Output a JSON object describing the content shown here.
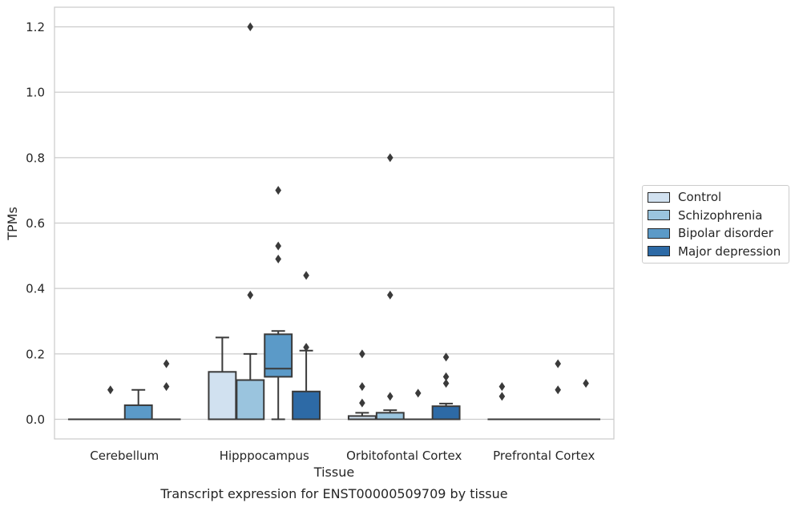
{
  "chart_data": {
    "type": "box",
    "title": "Transcript expression for ENST00000509709 by tissue",
    "xlabel": "Tissue",
    "ylabel": "TPMs",
    "ylim": [
      -0.06,
      1.26
    ],
    "yticks": [
      "0.0",
      "0.2",
      "0.4",
      "0.6",
      "0.8",
      "1.0",
      "1.2"
    ],
    "grid": "horizontal",
    "legend_position": "right",
    "categories": [
      "Cerebellum",
      "Hipppocampus",
      "Orbitofontal Cortex",
      "Prefrontal Cortex"
    ],
    "series": [
      {
        "name": "Control",
        "color": "#d1e1f0",
        "boxes": [
          {
            "q1": 0.0,
            "median": 0.0,
            "q3": 0.0,
            "whisker_low": 0.0,
            "whisker_high": 0.0,
            "outliers": []
          },
          {
            "q1": 0.0,
            "median": 0.0,
            "q3": 0.145,
            "whisker_low": 0.0,
            "whisker_high": 0.25,
            "outliers": []
          },
          {
            "q1": 0.0,
            "median": 0.0,
            "q3": 0.01,
            "whisker_low": 0.0,
            "whisker_high": 0.02,
            "outliers": [
              0.2,
              0.1,
              0.05
            ]
          },
          {
            "q1": 0.0,
            "median": 0.0,
            "q3": 0.0,
            "whisker_low": 0.0,
            "whisker_high": 0.0,
            "outliers": [
              0.1,
              0.07
            ]
          }
        ]
      },
      {
        "name": "Schizophrenia",
        "color": "#9ac4de",
        "boxes": [
          {
            "q1": 0.0,
            "median": 0.0,
            "q3": 0.0,
            "whisker_low": 0.0,
            "whisker_high": 0.0,
            "outliers": [
              0.09
            ]
          },
          {
            "q1": 0.0,
            "median": 0.0,
            "q3": 0.12,
            "whisker_low": 0.0,
            "whisker_high": 0.2,
            "outliers": [
              1.2,
              0.38
            ]
          },
          {
            "q1": 0.0,
            "median": 0.0,
            "q3": 0.02,
            "whisker_low": 0.0,
            "whisker_high": 0.028,
            "outliers": [
              0.8,
              0.38,
              0.07
            ]
          },
          {
            "q1": 0.0,
            "median": 0.0,
            "q3": 0.0,
            "whisker_low": 0.0,
            "whisker_high": 0.0,
            "outliers": []
          }
        ]
      },
      {
        "name": "Bipolar disorder",
        "color": "#5b9ac8",
        "boxes": [
          {
            "q1": 0.0,
            "median": 0.0,
            "q3": 0.043,
            "whisker_low": 0.0,
            "whisker_high": 0.09,
            "outliers": []
          },
          {
            "q1": 0.13,
            "median": 0.155,
            "q3": 0.26,
            "whisker_low": 0.0,
            "whisker_high": 0.27,
            "outliers": [
              0.7,
              0.53,
              0.49
            ]
          },
          {
            "q1": 0.0,
            "median": 0.0,
            "q3": 0.0,
            "whisker_low": 0.0,
            "whisker_high": 0.0,
            "outliers": [
              0.08
            ]
          },
          {
            "q1": 0.0,
            "median": 0.0,
            "q3": 0.0,
            "whisker_low": 0.0,
            "whisker_high": 0.0,
            "outliers": [
              0.17,
              0.09
            ]
          }
        ]
      },
      {
        "name": "Major depression",
        "color": "#2d6aa6",
        "boxes": [
          {
            "q1": 0.0,
            "median": 0.0,
            "q3": 0.0,
            "whisker_low": 0.0,
            "whisker_high": 0.0,
            "outliers": [
              0.17,
              0.1
            ]
          },
          {
            "q1": 0.0,
            "median": 0.0,
            "q3": 0.085,
            "whisker_low": 0.0,
            "whisker_high": 0.21,
            "outliers": [
              0.44,
              0.22
            ]
          },
          {
            "q1": 0.0,
            "median": 0.0,
            "q3": 0.04,
            "whisker_low": 0.0,
            "whisker_high": 0.048,
            "outliers": [
              0.19,
              0.13,
              0.11
            ]
          },
          {
            "q1": 0.0,
            "median": 0.0,
            "q3": 0.0,
            "whisker_low": 0.0,
            "whisker_high": 0.0,
            "outliers": [
              0.11
            ]
          }
        ]
      }
    ]
  }
}
